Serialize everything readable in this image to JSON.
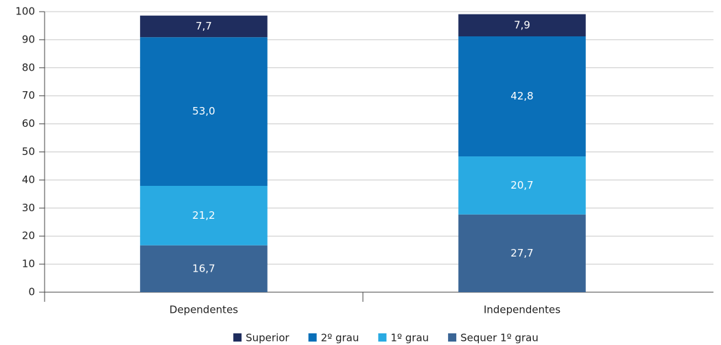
{
  "chart_data": {
    "type": "stacked-bar",
    "categories": [
      "Dependentes",
      "Independentes"
    ],
    "series": [
      {
        "name": "Sequer 1º grau",
        "color": "#3a6595",
        "values": [
          16.7,
          27.7
        ],
        "value_labels": [
          "16,7",
          "27,7"
        ]
      },
      {
        "name": "1º grau",
        "color": "#29aae2",
        "values": [
          21.2,
          20.7
        ],
        "value_labels": [
          "21,2",
          "20,7"
        ]
      },
      {
        "name": "2º grau",
        "color": "#0a6fb8",
        "values": [
          53.0,
          42.8
        ],
        "value_labels": [
          "53,0",
          "42,8"
        ]
      },
      {
        "name": "Superior",
        "color": "#1f2d5e",
        "values": [
          7.7,
          7.9
        ],
        "value_labels": [
          "7,7",
          "7,9"
        ]
      }
    ],
    "ylim": [
      0,
      100
    ],
    "yticks": [
      0,
      10,
      20,
      30,
      40,
      50,
      60,
      70,
      80,
      90,
      100
    ],
    "grid": true,
    "legend": "bottom"
  }
}
